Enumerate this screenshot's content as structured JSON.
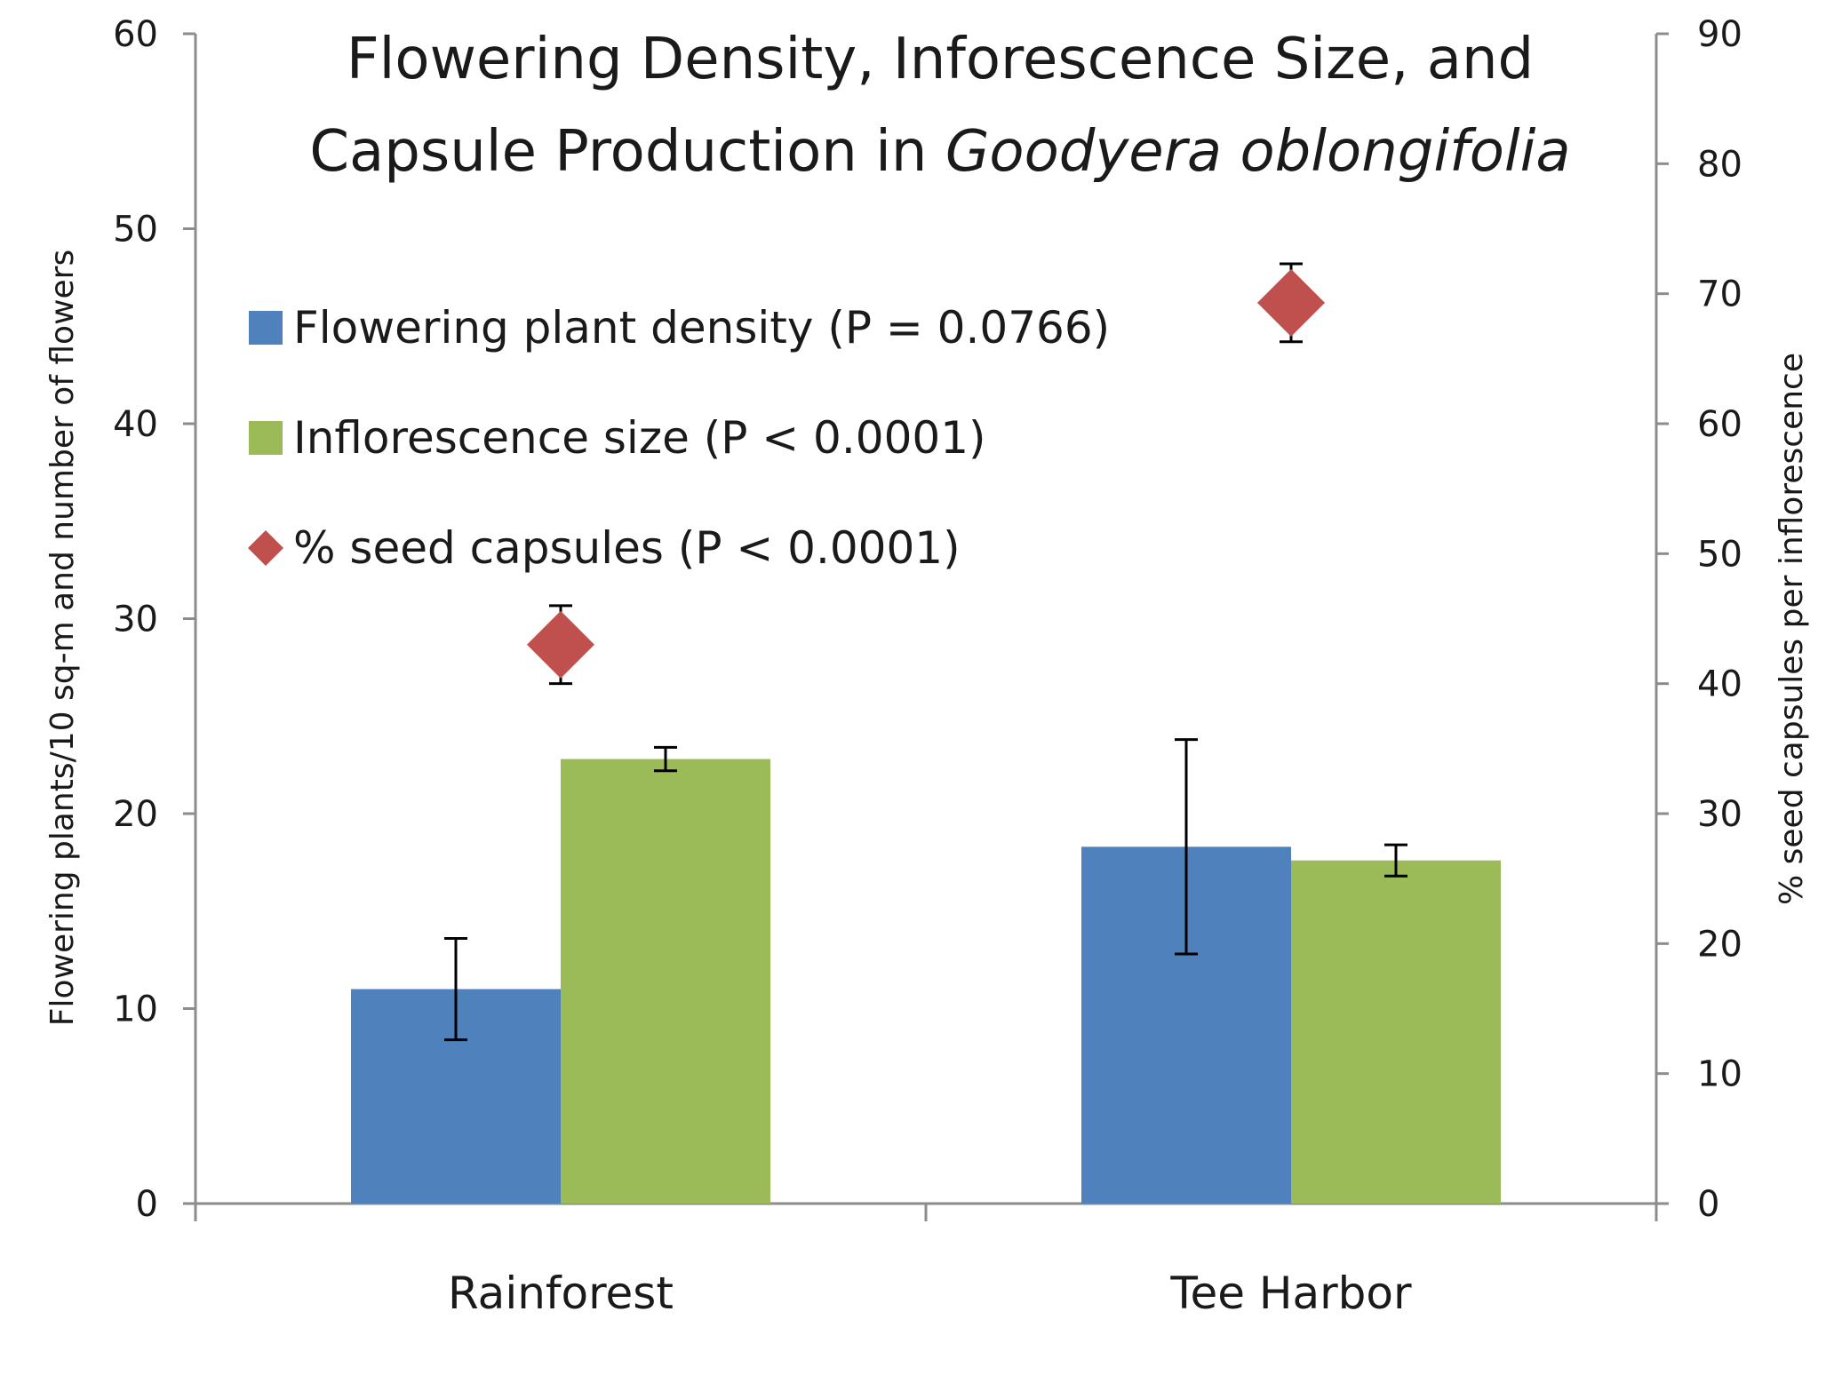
{
  "chart_data": {
    "type": "bar",
    "title_line1": "Flowering Density, Inforescence  Size, and",
    "title_line2_prefix": "Capsule Production in ",
    "title_line2_species": "Goodyera oblongifolia",
    "categories": [
      "Rainforest",
      "Tee Harbor"
    ],
    "ylabel": "Flowering plants/10 sq-m and number of flowers",
    "y2label": "% seed capsules per inflorescence",
    "ylim": [
      0,
      60
    ],
    "y2lim": [
      0,
      90
    ],
    "yticks": [
      0,
      10,
      20,
      30,
      40,
      50,
      60
    ],
    "y2ticks": [
      0,
      10,
      20,
      30,
      40,
      50,
      60,
      70,
      80,
      90
    ],
    "series": [
      {
        "name": "Flowering plant density  (P =  0.0766)",
        "type": "bar",
        "axis": "left",
        "color": "#4F81BD",
        "values": [
          11.0,
          18.3
        ],
        "errors": [
          2.6,
          5.5
        ]
      },
      {
        "name": "Inflorescence size  (P < 0.0001)",
        "type": "bar",
        "axis": "left",
        "color": "#9BBB59",
        "values": [
          22.8,
          17.6
        ],
        "errors": [
          0.6,
          0.8
        ]
      },
      {
        "name": "% seed capsules (P < 0.0001)",
        "type": "scatter",
        "marker": "diamond",
        "axis": "right",
        "color": "#C0504D",
        "values": [
          43.0,
          69.3
        ],
        "errors": [
          3.0,
          3.0
        ]
      }
    ],
    "legend_position": "top-left",
    "grid": false
  }
}
